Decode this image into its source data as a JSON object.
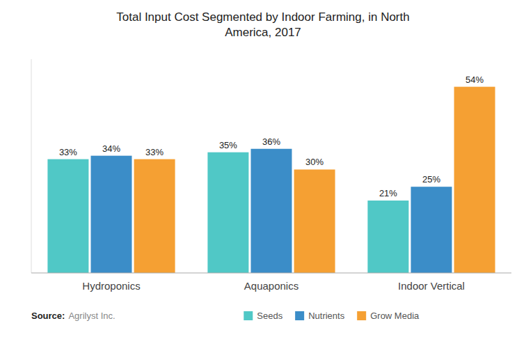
{
  "chart_data": {
    "type": "bar",
    "title": "Total Input Cost Segmented by Indoor Farming, in North\nAmerica, 2017",
    "categories": [
      "Hydroponics",
      "Aquaponics",
      "Indoor Vertical"
    ],
    "series": [
      {
        "name": "Seeds",
        "color": "#50C8C6",
        "values": [
          33,
          35,
          21
        ],
        "value_labels": [
          "33%",
          "35%",
          "21%"
        ]
      },
      {
        "name": "Nutrients",
        "color": "#3B8DC8",
        "values": [
          34,
          36,
          25
        ],
        "value_labels": [
          "34%",
          "36%",
          "25%"
        ]
      },
      {
        "name": "Grow Media",
        "color": "#F5A033",
        "values": [
          33,
          30,
          54
        ],
        "value_labels": [
          "33%",
          "30%",
          "54%"
        ]
      }
    ],
    "ylim": [
      0,
      62
    ],
    "data_labels": true,
    "tick_labels": "x",
    "grid": false,
    "legend": "bottom",
    "annotations": [
      "Source:",
      "Agrilyst Inc."
    ]
  }
}
